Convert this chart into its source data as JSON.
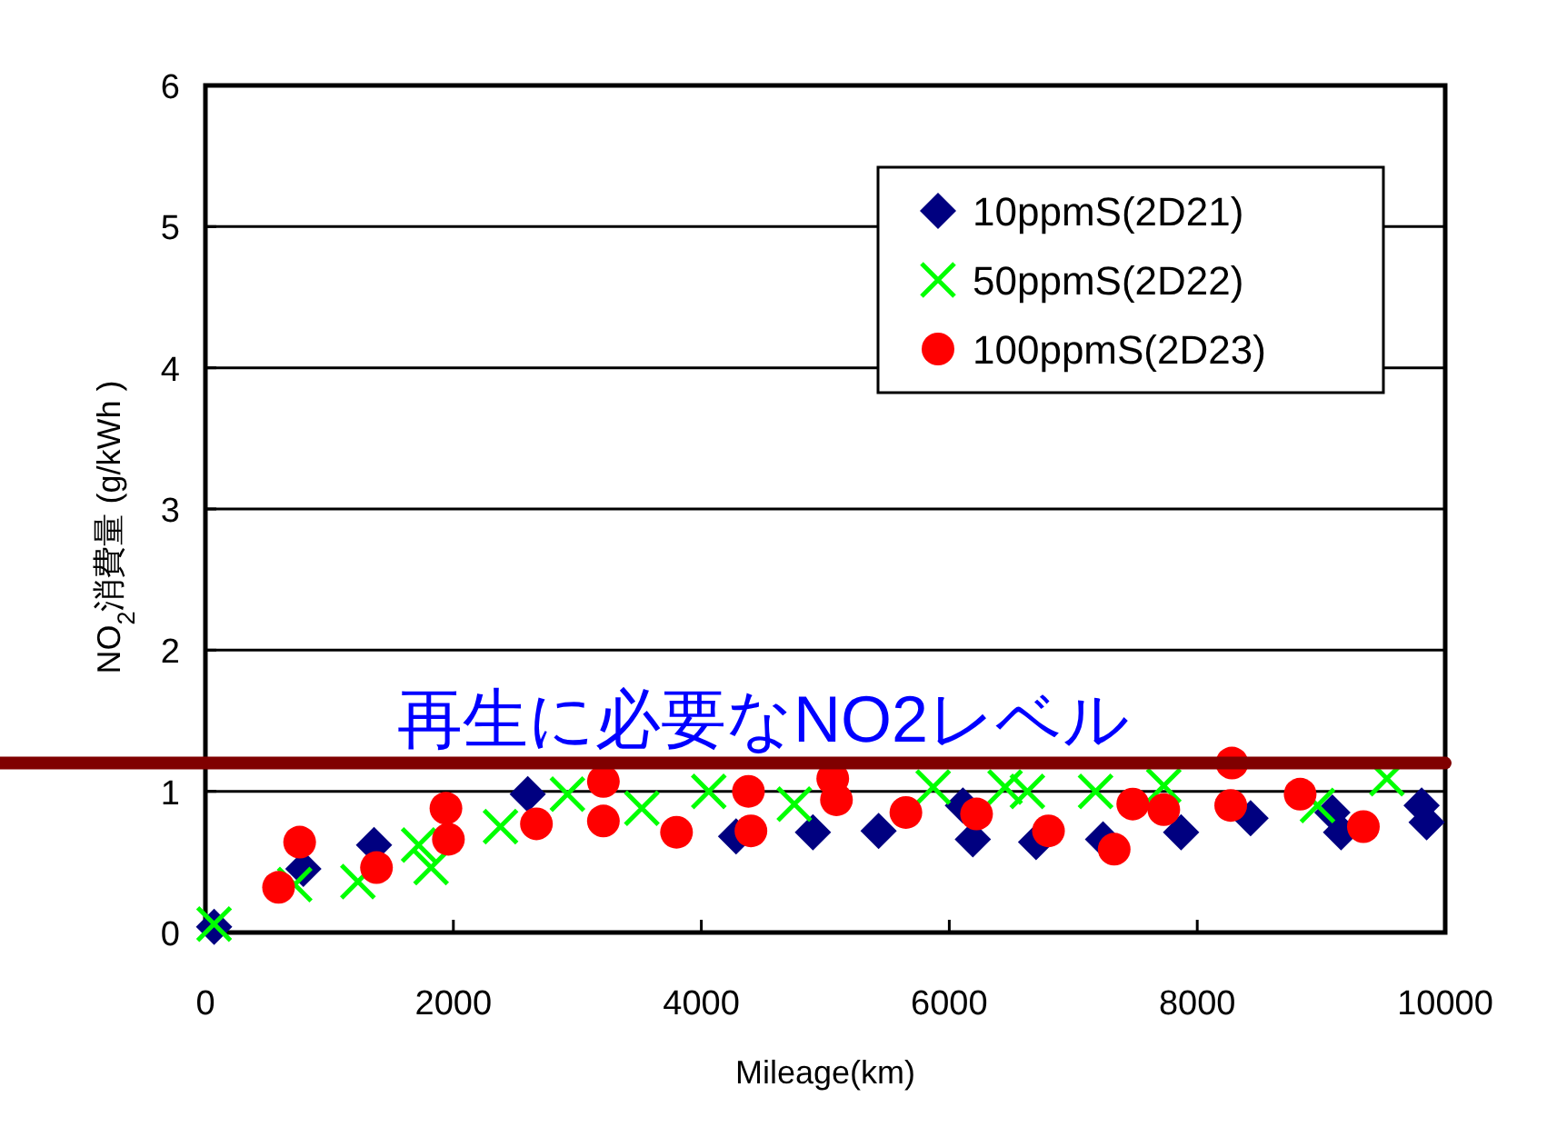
{
  "chart_data": {
    "type": "scatter",
    "xlabel": "Mileage(km)",
    "ylabel": "NO$_{2}$消費量 (g/kWh )",
    "xlim": [
      0,
      10000
    ],
    "xticks": [
      0,
      2000,
      4000,
      6000,
      8000,
      10000
    ],
    "ylim": [
      0,
      6
    ],
    "yticks": [
      0,
      1,
      2,
      3,
      4,
      5,
      6
    ],
    "grid": "y",
    "legend": "top right",
    "ref_lines": [
      {
        "axis": "y",
        "value": 1.2,
        "label": "再生に必要なNO2レベル",
        "color": "#800000"
      }
    ],
    "series": [
      {
        "name": "10ppmS(2D21)",
        "color": "#000080",
        "marker": "diamond",
        "x": [
          70,
          790,
          1360,
          2600,
          4280,
          4900,
          5430,
          6110,
          6190,
          6700,
          7240,
          7870,
          8430,
          9090,
          9160,
          9810,
          9850
        ],
        "values": [
          0.04,
          0.45,
          0.62,
          0.98,
          0.68,
          0.71,
          0.72,
          0.9,
          0.66,
          0.64,
          0.66,
          0.71,
          0.81,
          0.85,
          0.71,
          0.9,
          0.78
        ]
      },
      {
        "name": "50ppmS(2D22)",
        "color": "#00ff00",
        "marker": "cross",
        "x": [
          70,
          720,
          1230,
          1720,
          1820,
          2380,
          2920,
          3520,
          4060,
          4750,
          5870,
          6450,
          6630,
          7180,
          7730,
          8970,
          9530
        ],
        "values": [
          0.06,
          0.34,
          0.36,
          0.62,
          0.46,
          0.75,
          0.98,
          0.88,
          1.0,
          0.91,
          1.03,
          1.03,
          1.0,
          1.0,
          1.04,
          0.9,
          1.09
        ]
      },
      {
        "name": "100ppmS(2D23)",
        "color": "#ff0000",
        "marker": "circle",
        "x": [
          590,
          760,
          1380,
          1940,
          1960,
          2670,
          3210,
          3210,
          3800,
          4380,
          4400,
          5060,
          5090,
          5650,
          6220,
          6800,
          7330,
          7480,
          7730,
          8280,
          8270,
          8830,
          9340
        ],
        "values": [
          0.32,
          0.64,
          0.46,
          0.88,
          0.66,
          0.77,
          1.07,
          0.79,
          0.71,
          1.0,
          0.72,
          1.09,
          0.94,
          0.85,
          0.84,
          0.72,
          0.59,
          0.91,
          0.87,
          1.2,
          0.9,
          0.98,
          0.75
        ]
      }
    ]
  }
}
